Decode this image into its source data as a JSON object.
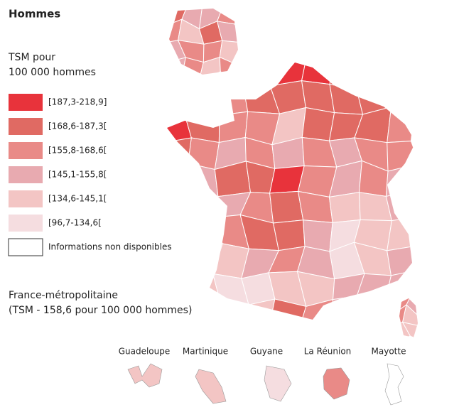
{
  "header": {
    "title": "Hommes"
  },
  "legend": {
    "title_line1": "TSM pour",
    "title_line2": "100 000 hommes",
    "items": [
      {
        "label": "[187,3-218,9]",
        "color": "#e8333b"
      },
      {
        "label": "[168,6-187,3[",
        "color": "#e06a63"
      },
      {
        "label": "[155,8-168,6[",
        "color": "#e98a87"
      },
      {
        "label": "[145,1-155,8[",
        "color": "#e8aab0"
      },
      {
        "label": "[134,6-145,1[",
        "color": "#f3c5c4"
      },
      {
        "label": "[96,7-134,6[",
        "color": "#f5dde0"
      },
      {
        "label": "Informations non disponibles",
        "color": "#ffffff"
      }
    ]
  },
  "note": {
    "line1": "France-métropolitaine",
    "line2": "(TSM - 158,6 pour 100 000 hommes)"
  },
  "overseas": [
    {
      "label": "Guadeloupe"
    },
    {
      "label": "Martinique"
    },
    {
      "label": "Guyane"
    },
    {
      "label": "La Réunion"
    },
    {
      "label": "Mayotte"
    }
  ]
}
